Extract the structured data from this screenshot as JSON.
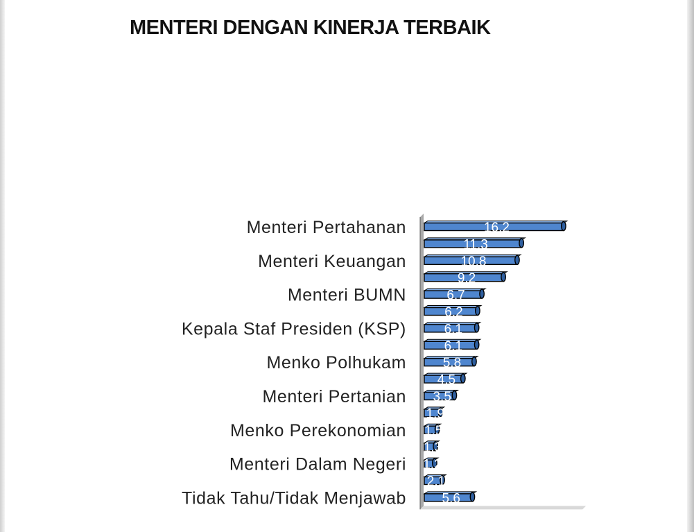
{
  "chart_data": {
    "type": "bar",
    "orientation": "horizontal",
    "title": "MENTERI DENGAN KINERJA TERBAIK",
    "categories": [
      "Menteri Pertahanan",
      "",
      "Menteri Keuangan ",
      "",
      "Menteri BUMN",
      "",
      "Kepala Staf Presiden (KSP)",
      "",
      "Menko Polhukam",
      "",
      "Menteri Pertanian",
      "",
      "Menko Perekonomian",
      "",
      "Menteri Dalam Negeri",
      "",
      "Tidak Tahu/Tidak Menjawab"
    ],
    "values": [
      16.2,
      11.3,
      10.8,
      9.2,
      6.7,
      6.2,
      6.1,
      6.1,
      5.8,
      4.5,
      3.5,
      1.9,
      1.5,
      1.3,
      1.2,
      2.1,
      5.6
    ],
    "value_labels": [
      "16.2",
      "11.3",
      "10.8",
      "9.2",
      "6.7",
      "6.2",
      "6.1",
      "6.1",
      "5.8",
      "4.5",
      "3.5",
      "1.9",
      "1.5",
      "1.3",
      "1.2",
      "2.1",
      "5.6"
    ],
    "xlim": [
      0,
      18
    ],
    "grid": false,
    "legend": "none",
    "bar_color": "#4f86cf",
    "bar_outline": "#000000",
    "style": "3d"
  }
}
